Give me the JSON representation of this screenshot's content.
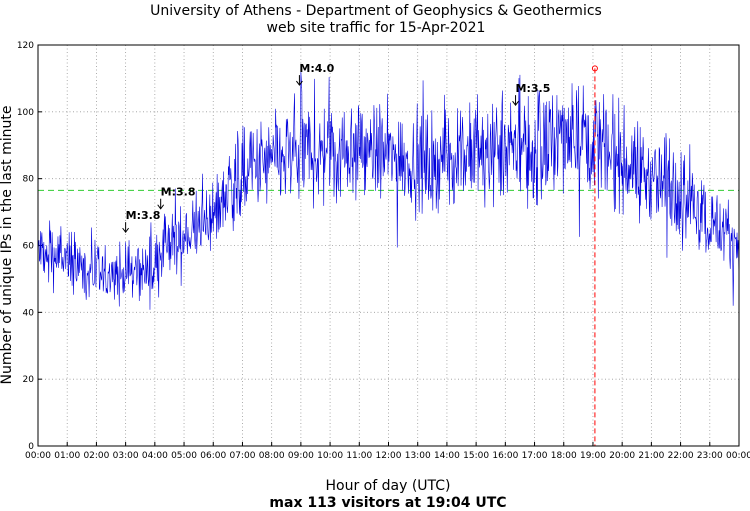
{
  "chart_data": {
    "type": "line",
    "title": "University of Athens - Department of Geophysics & Geothermics",
    "subtitle": "web site traffic for 15-Apr-2021",
    "xlabel": "Hour of day (UTC)",
    "ylabel": "Number of unique IPs in the last minute",
    "footer": "max 113 visitors at 19:04 UTC",
    "xlim": [
      0,
      24
    ],
    "ylim": [
      0,
      120
    ],
    "grid": true,
    "x_ticks": [
      "00:00",
      "01:00",
      "02:00",
      "03:00",
      "04:00",
      "05:00",
      "06:00",
      "07:00",
      "08:00",
      "09:00",
      "10:00",
      "11:00",
      "12:00",
      "13:00",
      "14:00",
      "15:00",
      "16:00",
      "17:00",
      "18:00",
      "19:00",
      "20:00",
      "21:00",
      "22:00",
      "23:00",
      "00:00"
    ],
    "y_ticks": [
      0,
      20,
      40,
      60,
      80,
      100,
      120
    ],
    "series_color": "#0000dd",
    "mean_value": 76.5,
    "mean_color": "#33cc33",
    "max": {
      "x": 19.067,
      "y": 113,
      "color": "#ff0000"
    },
    "annotations": [
      {
        "label": "M:3.8",
        "x": 3.0,
        "y": 64
      },
      {
        "label": "M:3.8",
        "x": 4.2,
        "y": 71
      },
      {
        "label": "M:4.0",
        "x": 8.95,
        "y": 108
      },
      {
        "label": "M:3.5",
        "x": 16.35,
        "y": 102
      }
    ],
    "trend": [
      [
        0,
        58
      ],
      [
        0.5,
        57
      ],
      [
        1,
        55
      ],
      [
        1.5,
        53
      ],
      [
        2,
        51
      ],
      [
        2.5,
        50
      ],
      [
        3,
        52
      ],
      [
        3.5,
        53
      ],
      [
        4.0,
        52
      ],
      [
        4.2,
        59
      ],
      [
        4.6,
        60
      ],
      [
        5,
        62
      ],
      [
        5.5,
        66
      ],
      [
        6,
        70
      ],
      [
        6.5,
        77
      ],
      [
        7,
        82
      ],
      [
        7.5,
        83
      ],
      [
        8,
        85
      ],
      [
        8.5,
        86
      ],
      [
        9,
        88
      ],
      [
        9.5,
        88
      ],
      [
        10,
        88
      ],
      [
        10.5,
        89
      ],
      [
        11,
        89
      ],
      [
        11.5,
        88
      ],
      [
        12,
        87
      ],
      [
        12.5,
        86
      ],
      [
        13,
        85
      ],
      [
        13.5,
        85
      ],
      [
        14,
        86
      ],
      [
        14.5,
        87
      ],
      [
        15,
        87
      ],
      [
        15.5,
        87
      ],
      [
        16,
        88
      ],
      [
        16.5,
        89
      ],
      [
        17,
        88
      ],
      [
        17.5,
        89
      ],
      [
        18,
        93
      ],
      [
        18.5,
        94
      ],
      [
        19,
        92
      ],
      [
        19.5,
        89
      ],
      [
        20,
        86
      ],
      [
        20.5,
        83
      ],
      [
        21,
        80
      ],
      [
        21.5,
        78
      ],
      [
        22,
        76
      ],
      [
        22.5,
        72
      ],
      [
        23,
        67
      ],
      [
        23.5,
        64
      ],
      [
        24,
        61
      ]
    ]
  }
}
